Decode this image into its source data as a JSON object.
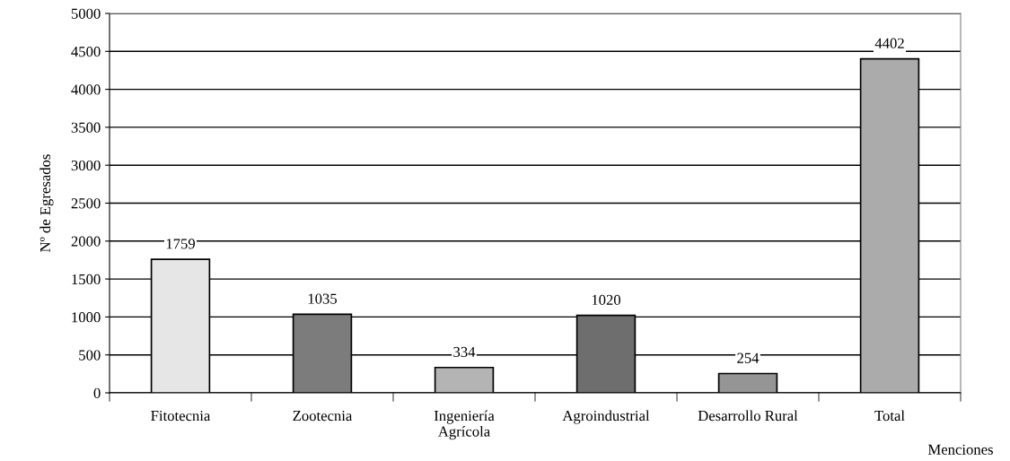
{
  "chart_data": {
    "type": "bar",
    "xlabel": "Menciones",
    "ylabel": "Nº de Egresados",
    "categories": [
      "Fitotecnia",
      "Zootecnia",
      "Ingeniería\nAgrícola",
      "Agroindustrial",
      "Desarrollo Rural",
      "Total"
    ],
    "values": [
      1759,
      1035,
      334,
      1020,
      254,
      4402
    ],
    "colors": [
      "#e6e6e6",
      "#7c7c7c",
      "#b4b4b4",
      "#6e6e6e",
      "#959595",
      "#ababab"
    ],
    "ylim": [
      0,
      5000
    ],
    "yticks": [
      0,
      500,
      1000,
      1500,
      2000,
      2500,
      3000,
      3500,
      4000,
      4500,
      5000
    ],
    "grid": "y",
    "data_labels": true
  }
}
